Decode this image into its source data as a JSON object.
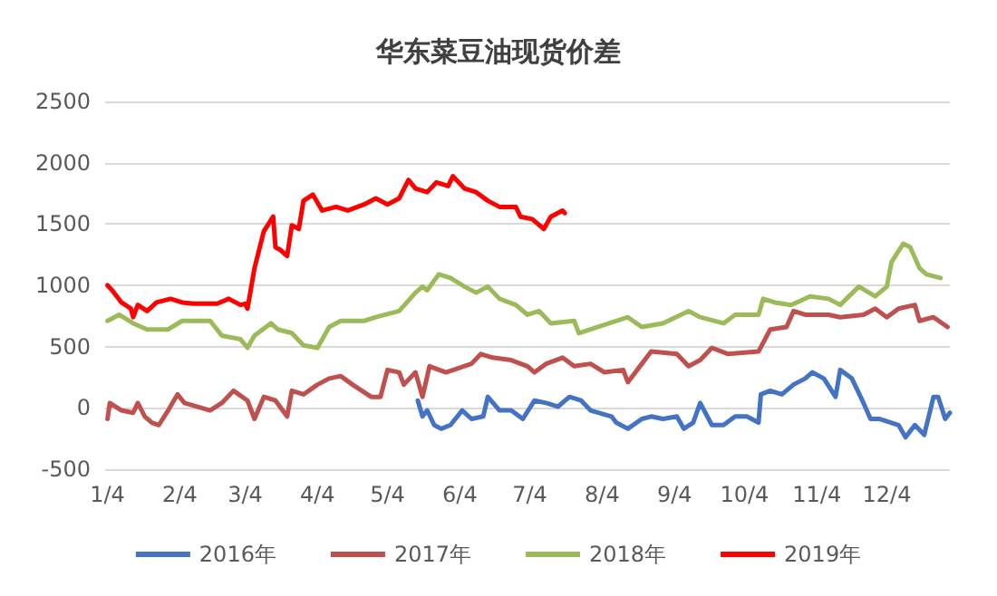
{
  "chart_data": {
    "type": "line",
    "title": "华东菜豆油现货价差",
    "xlim": [
      "--01-03",
      "--12-31"
    ],
    "xticks": [
      {
        "value": "--01-04",
        "label": "1/4"
      },
      {
        "value": "--02-04",
        "label": "2/4"
      },
      {
        "value": "--03-04",
        "label": "3/4"
      },
      {
        "value": "--04-04",
        "label": "4/4"
      },
      {
        "value": "--05-04",
        "label": "5/4"
      },
      {
        "value": "--06-04",
        "label": "6/4"
      },
      {
        "value": "--07-04",
        "label": "7/4"
      },
      {
        "value": "--08-04",
        "label": "8/4"
      },
      {
        "value": "--09-04",
        "label": "9/4"
      },
      {
        "value": "--10-04",
        "label": "10/4"
      },
      {
        "value": "--11-04",
        "label": "11/4"
      },
      {
        "value": "--12-04",
        "label": "12/4"
      }
    ],
    "ylim": [
      -500,
      2500
    ],
    "yticks": [
      -500,
      0,
      500,
      1000,
      1500,
      2000,
      2500
    ],
    "grid": "y",
    "legend": "bottom",
    "marker": "none",
    "line_style": "solid",
    "series": [
      {
        "name": "2016年",
        "color": "#4472c4",
        "x": [
          "--05-17",
          "--05-19",
          "--05-21",
          "--05-24",
          "--05-27",
          "--05-31",
          "--06-05",
          "--06-09",
          "--06-14",
          "--06-16",
          "--06-21",
          "--06-26",
          "--07-01",
          "--07-06",
          "--07-11",
          "--07-16",
          "--07-21",
          "--07-26",
          "--07-30",
          "--08-08",
          "--08-10",
          "--08-15",
          "--08-21",
          "--08-25",
          "--08-30",
          "--09-05",
          "--09-08",
          "--09-12",
          "--09-15",
          "--09-20",
          "--09-25",
          "--09-30",
          "--10-05",
          "--10-10",
          "--10-11",
          "--10-15",
          "--10-20",
          "--10-25",
          "--10-30",
          "--11-02",
          "--11-07",
          "--11-12",
          "--11-14",
          "--11-19",
          "--11-24",
          "--11-27",
          "--12-01",
          "--12-09",
          "--12-12",
          "--12-16",
          "--12-20",
          "--12-24",
          "--12-26",
          "--12-29",
          "--12-31"
        ],
        "values": [
          60,
          -70,
          -20,
          -140,
          -170,
          -140,
          -20,
          -90,
          -70,
          90,
          -20,
          -20,
          -90,
          60,
          40,
          10,
          90,
          60,
          -20,
          -70,
          -120,
          -170,
          -90,
          -70,
          -90,
          -70,
          -170,
          -120,
          40,
          -140,
          -140,
          -70,
          -70,
          -120,
          110,
          140,
          110,
          190,
          240,
          290,
          240,
          90,
          310,
          240,
          40,
          -90,
          -90,
          -140,
          -240,
          -140,
          -220,
          90,
          90,
          -90,
          -40
        ]
      },
      {
        "name": "2017年",
        "color": "#c0504d",
        "x": [
          "--01-04",
          "--01-05",
          "--01-10",
          "--01-15",
          "--01-17",
          "--01-20",
          "--01-23",
          "--01-26",
          "--01-30",
          "--02-03",
          "--02-06",
          "--02-17",
          "--02-22",
          "--02-27",
          "--03-05",
          "--03-08",
          "--03-12",
          "--03-17",
          "--03-22",
          "--03-24",
          "--03-29",
          "--04-04",
          "--04-09",
          "--04-14",
          "--04-19",
          "--04-27",
          "--05-01",
          "--05-04",
          "--05-09",
          "--05-11",
          "--05-16",
          "--05-19",
          "--05-22",
          "--05-29",
          "--06-09",
          "--06-13",
          "--06-18",
          "--06-26",
          "--07-03",
          "--07-06",
          "--07-11",
          "--07-18",
          "--07-23",
          "--07-30",
          "--08-05",
          "--08-13",
          "--08-15",
          "--08-21",
          "--08-25",
          "--09-05",
          "--09-10",
          "--09-15",
          "--09-20",
          "--09-27",
          "--10-10",
          "--10-15",
          "--10-22",
          "--10-25",
          "--10-30",
          "--11-09",
          "--11-14",
          "--11-24",
          "--11-29",
          "--12-04",
          "--12-09",
          "--12-16",
          "--12-18",
          "--12-24",
          "--12-30"
        ],
        "values": [
          -90,
          40,
          -20,
          -40,
          40,
          -70,
          -120,
          -140,
          -20,
          110,
          40,
          -20,
          40,
          140,
          60,
          -90,
          90,
          60,
          -70,
          140,
          110,
          190,
          240,
          260,
          190,
          90,
          90,
          310,
          290,
          190,
          290,
          90,
          340,
          290,
          360,
          440,
          410,
          390,
          340,
          290,
          360,
          410,
          340,
          360,
          290,
          310,
          210,
          360,
          460,
          440,
          340,
          390,
          490,
          440,
          460,
          640,
          660,
          790,
          760,
          760,
          740,
          760,
          810,
          740,
          810,
          840,
          710,
          740,
          660
        ]
      },
      {
        "name": "2018年",
        "color": "#9bbb59",
        "x": [
          "--01-04",
          "--01-09",
          "--01-15",
          "--01-21",
          "--01-30",
          "--02-05",
          "--02-17",
          "--02-22",
          "--03-02",
          "--03-05",
          "--03-08",
          "--03-15",
          "--03-18",
          "--03-24",
          "--03-29",
          "--04-04",
          "--04-09",
          "--04-14",
          "--04-24",
          "--04-29",
          "--05-09",
          "--05-16",
          "--05-19",
          "--05-21",
          "--05-26",
          "--05-31",
          "--06-06",
          "--06-11",
          "--06-16",
          "--06-21",
          "--06-28",
          "--07-03",
          "--07-08",
          "--07-13",
          "--07-23",
          "--07-25",
          "--07-30",
          "--08-15",
          "--08-21",
          "--08-30",
          "--09-10",
          "--09-15",
          "--09-25",
          "--09-30",
          "--10-10",
          "--10-12",
          "--10-17",
          "--10-24",
          "--11-01",
          "--11-09",
          "--11-14",
          "--11-22",
          "--11-29",
          "--12-04",
          "--12-06",
          "--12-11",
          "--12-14",
          "--12-18",
          "--12-21",
          "--12-27"
        ],
        "values": [
          710,
          760,
          690,
          640,
          640,
          710,
          710,
          590,
          560,
          490,
          590,
          690,
          640,
          610,
          510,
          490,
          660,
          710,
          710,
          740,
          790,
          940,
          990,
          960,
          1090,
          1060,
          990,
          940,
          990,
          890,
          840,
          760,
          790,
          690,
          710,
          610,
          640,
          740,
          660,
          690,
          790,
          740,
          690,
          760,
          760,
          890,
          860,
          840,
          910,
          890,
          840,
          990,
          910,
          990,
          1190,
          1340,
          1310,
          1140,
          1090,
          1060
        ]
      },
      {
        "name": "2019年",
        "color": "#ff0000",
        "x": [
          "--01-04",
          "--01-06",
          "--01-10",
          "--01-14",
          "--01-15",
          "--01-17",
          "--01-21",
          "--01-25",
          "--01-31",
          "--02-05",
          "--02-10",
          "--02-20",
          "--02-25",
          "--03-02",
          "--03-04",
          "--03-05",
          "--03-08",
          "--03-12",
          "--03-16",
          "--03-17",
          "--03-19",
          "--03-22",
          "--03-24",
          "--03-27",
          "--03-29",
          "--04-02",
          "--04-06",
          "--04-12",
          "--04-17",
          "--04-24",
          "--04-29",
          "--05-04",
          "--05-09",
          "--05-13",
          "--05-16",
          "--05-21",
          "--05-25",
          "--05-30",
          "--06-01",
          "--06-06",
          "--06-11",
          "--06-16",
          "--06-21",
          "--06-28",
          "--06-30",
          "--07-05",
          "--07-10",
          "--07-13",
          "--07-18",
          "--07-19"
        ],
        "values": [
          1000,
          960,
          860,
          810,
          740,
          840,
          790,
          860,
          890,
          860,
          850,
          850,
          890,
          840,
          850,
          810,
          1140,
          1440,
          1560,
          1310,
          1290,
          1240,
          1490,
          1460,
          1690,
          1740,
          1610,
          1640,
          1610,
          1660,
          1710,
          1660,
          1710,
          1860,
          1790,
          1760,
          1840,
          1810,
          1890,
          1790,
          1760,
          1690,
          1640,
          1640,
          1560,
          1540,
          1460,
          1560,
          1610,
          1590
        ]
      }
    ]
  }
}
